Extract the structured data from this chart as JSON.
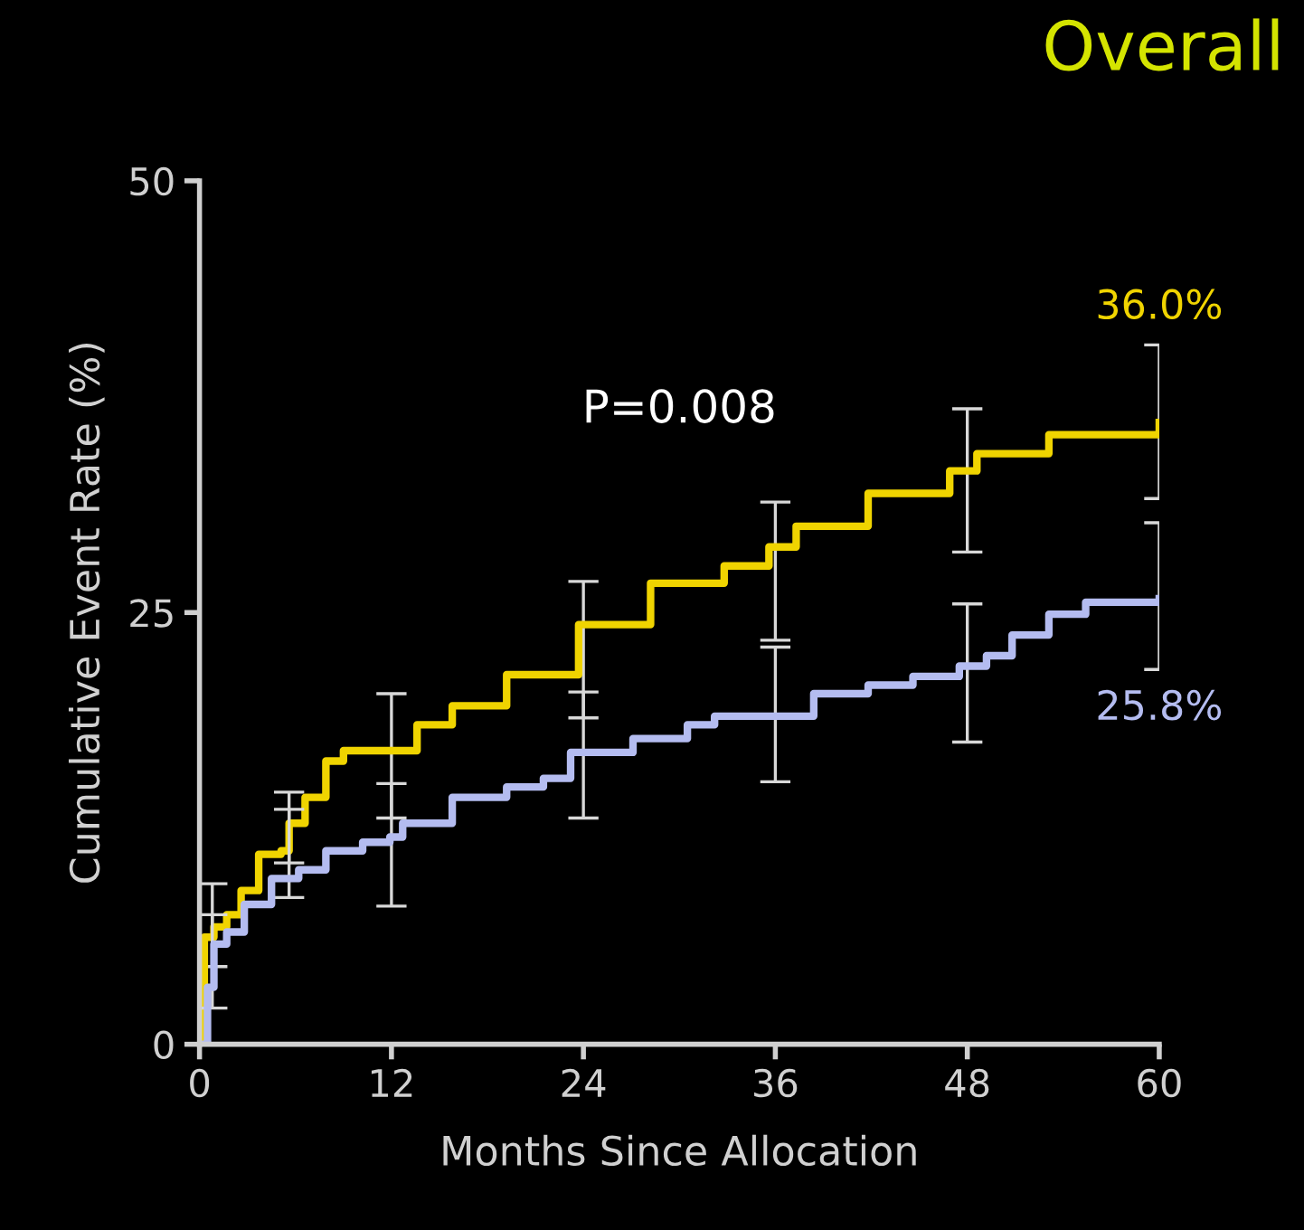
{
  "chart_data": {
    "type": "step",
    "title": "Overall",
    "xlabel": "Months Since Allocation",
    "ylabel": "Cumulative Event Rate (%)",
    "xlim": [
      0,
      60
    ],
    "xticks": [
      0,
      12,
      24,
      36,
      48,
      60
    ],
    "ylim": [
      0,
      50
    ],
    "yticks": [
      0,
      25,
      50
    ],
    "annotations": [
      {
        "text": "36.0%",
        "x": 60,
        "y": 36.0
      },
      {
        "text": "25.8%",
        "x": 60,
        "y": 25.8
      },
      "P=0.008"
    ],
    "series": [
      {
        "color": "#f0d400",
        "x": [
          0,
          0.3,
          0.8,
          0.9,
          1.7,
          2.6,
          3.7,
          5.1,
          5.6,
          6.6,
          7.9,
          9.0,
          12,
          12.4,
          13.6,
          15.8,
          19.2,
          23.7,
          24,
          28.2,
          32.8,
          35.6,
          36,
          37.3,
          41.8,
          46.9,
          48,
          48.6,
          53.1,
          60
        ],
        "values": [
          0,
          6.2,
          6.2,
          6.8,
          7.5,
          8.9,
          11.0,
          11.2,
          12.8,
          14.3,
          16.4,
          17.0,
          17.0,
          17.0,
          18.5,
          19.6,
          21.4,
          24.3,
          24.3,
          26.7,
          27.7,
          28.8,
          28.8,
          30.0,
          31.9,
          33.2,
          33.2,
          34.2,
          35.3,
          36.0
        ],
        "errors": [
          null,
          null,
          [
            4.5,
            9.3
          ],
          null,
          null,
          null,
          null,
          null,
          [
            10.5,
            14.6
          ],
          null,
          null,
          null,
          [
            13.1,
            20.3
          ],
          null,
          null,
          null,
          null,
          null,
          [
            18.9,
            26.8
          ],
          null,
          null,
          null,
          [
            23.4,
            31.4
          ],
          null,
          null,
          null,
          [
            28.5,
            36.8
          ],
          null,
          null,
          [
            31.6,
            40.5
          ]
        ]
      },
      {
        "color": "#b4bcf0",
        "x": [
          0,
          0.5,
          0.8,
          0.9,
          1.7,
          2.8,
          4.5,
          5.6,
          6.2,
          7.9,
          10.2,
          11.9,
          12,
          12.7,
          15.8,
          19.2,
          21.5,
          23.2,
          24,
          27.1,
          30.5,
          32.2,
          36,
          38.1,
          38.4,
          41.8,
          44.6,
          47.5,
          48,
          49.2,
          50.8,
          53.1,
          55.4,
          57.6,
          60
        ],
        "values": [
          0,
          3.3,
          3.3,
          5.8,
          6.5,
          8.1,
          9.6,
          9.6,
          10.1,
          11.2,
          11.7,
          12.0,
          12.0,
          12.8,
          14.3,
          14.9,
          15.4,
          16.9,
          16.9,
          17.7,
          18.5,
          19.0,
          19.0,
          19.0,
          20.3,
          20.8,
          21.3,
          21.9,
          21.9,
          22.5,
          23.7,
          24.9,
          25.6,
          25.6,
          25.8
        ],
        "errors": [
          null,
          null,
          [
            2.1,
            7.5
          ],
          null,
          null,
          null,
          null,
          [
            8.5,
            13.6
          ],
          null,
          null,
          null,
          null,
          [
            8.0,
            15.1
          ],
          null,
          null,
          null,
          null,
          null,
          [
            13.1,
            20.4
          ],
          null,
          null,
          null,
          [
            15.2,
            23.0
          ],
          null,
          null,
          null,
          null,
          null,
          [
            17.5,
            25.5
          ],
          null,
          null,
          null,
          null,
          null,
          [
            21.7,
            30.2
          ]
        ]
      }
    ]
  }
}
